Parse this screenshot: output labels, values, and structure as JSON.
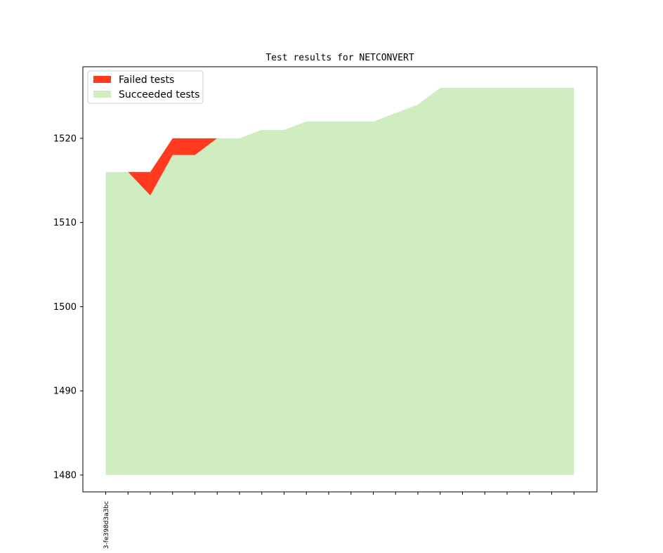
{
  "chart_data": {
    "type": "area",
    "title": "Test results for NETCONVERT",
    "xlabel": "",
    "ylabel": "",
    "ylim": [
      1478,
      1528.5
    ],
    "yticks": [
      1480,
      1490,
      1500,
      1510,
      1520
    ],
    "x_index": [
      0,
      1,
      2,
      3,
      4,
      5,
      6,
      7,
      8,
      9,
      10,
      11,
      12,
      13,
      14,
      15,
      16,
      17,
      18,
      19,
      20,
      21
    ],
    "x_tick_labels": [
      "3-fe398d3a3bc"
    ],
    "series": [
      {
        "name": "Failed tests",
        "color": "#ff3a1f",
        "lower": [
          1516,
          1516,
          1513.2,
          1518,
          1518,
          1520,
          1520,
          1521,
          1521,
          1522,
          1522,
          1522,
          1522,
          1523,
          1524,
          1526,
          1526,
          1526,
          1526,
          1526,
          1526,
          1526
        ],
        "upper": [
          1516,
          1516,
          1516,
          1520,
          1520,
          1520,
          1520,
          1521,
          1521,
          1522,
          1522,
          1522,
          1522,
          1523,
          1524,
          1526,
          1526,
          1526,
          1526,
          1526,
          1526,
          1526
        ]
      },
      {
        "name": "Succeeded tests",
        "color": "#cfedc0",
        "base": 1480,
        "values": [
          1516,
          1516,
          1513.2,
          1518,
          1518,
          1520,
          1520,
          1521,
          1521,
          1522,
          1522,
          1522,
          1522,
          1523,
          1524,
          1526,
          1526,
          1526,
          1526,
          1526,
          1526,
          1526
        ]
      }
    ],
    "legend_position": "upper-left",
    "grid": false
  }
}
